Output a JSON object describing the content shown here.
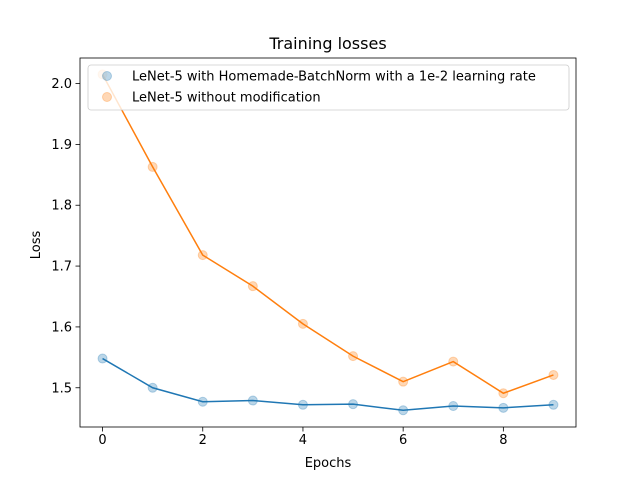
{
  "chart_data": {
    "type": "line",
    "title": "Training losses",
    "xlabel": "Epochs",
    "ylabel": "Loss",
    "xlim": [
      -0.45,
      9.45
    ],
    "ylim": [
      1.4355,
      2.042
    ],
    "xticks": [
      0,
      2,
      4,
      6,
      8
    ],
    "yticks": [
      1.5,
      1.6,
      1.7,
      1.8,
      1.9,
      2.0
    ],
    "xtick_labels": [
      "0",
      "2",
      "4",
      "6",
      "8"
    ],
    "ytick_labels": [
      "1.5",
      "1.6",
      "1.7",
      "1.8",
      "1.9",
      "2.0"
    ],
    "x": [
      0,
      1,
      2,
      3,
      4,
      5,
      6,
      7,
      8,
      9
    ],
    "series": [
      {
        "name": "LeNet-5 with Homemade-BatchNorm with a 1e-2 learning rate",
        "color": "#1f77b4",
        "values": [
          1.548,
          1.5,
          1.477,
          1.479,
          1.472,
          1.473,
          1.463,
          1.47,
          1.467,
          1.472
        ]
      },
      {
        "name": "LeNet-5 without modification",
        "color": "#ff7f0e",
        "values": [
          2.015,
          1.863,
          1.718,
          1.667,
          1.605,
          1.552,
          1.51,
          1.543,
          1.491,
          1.521
        ]
      }
    ],
    "legend_position": "upper-left",
    "grid": false
  }
}
